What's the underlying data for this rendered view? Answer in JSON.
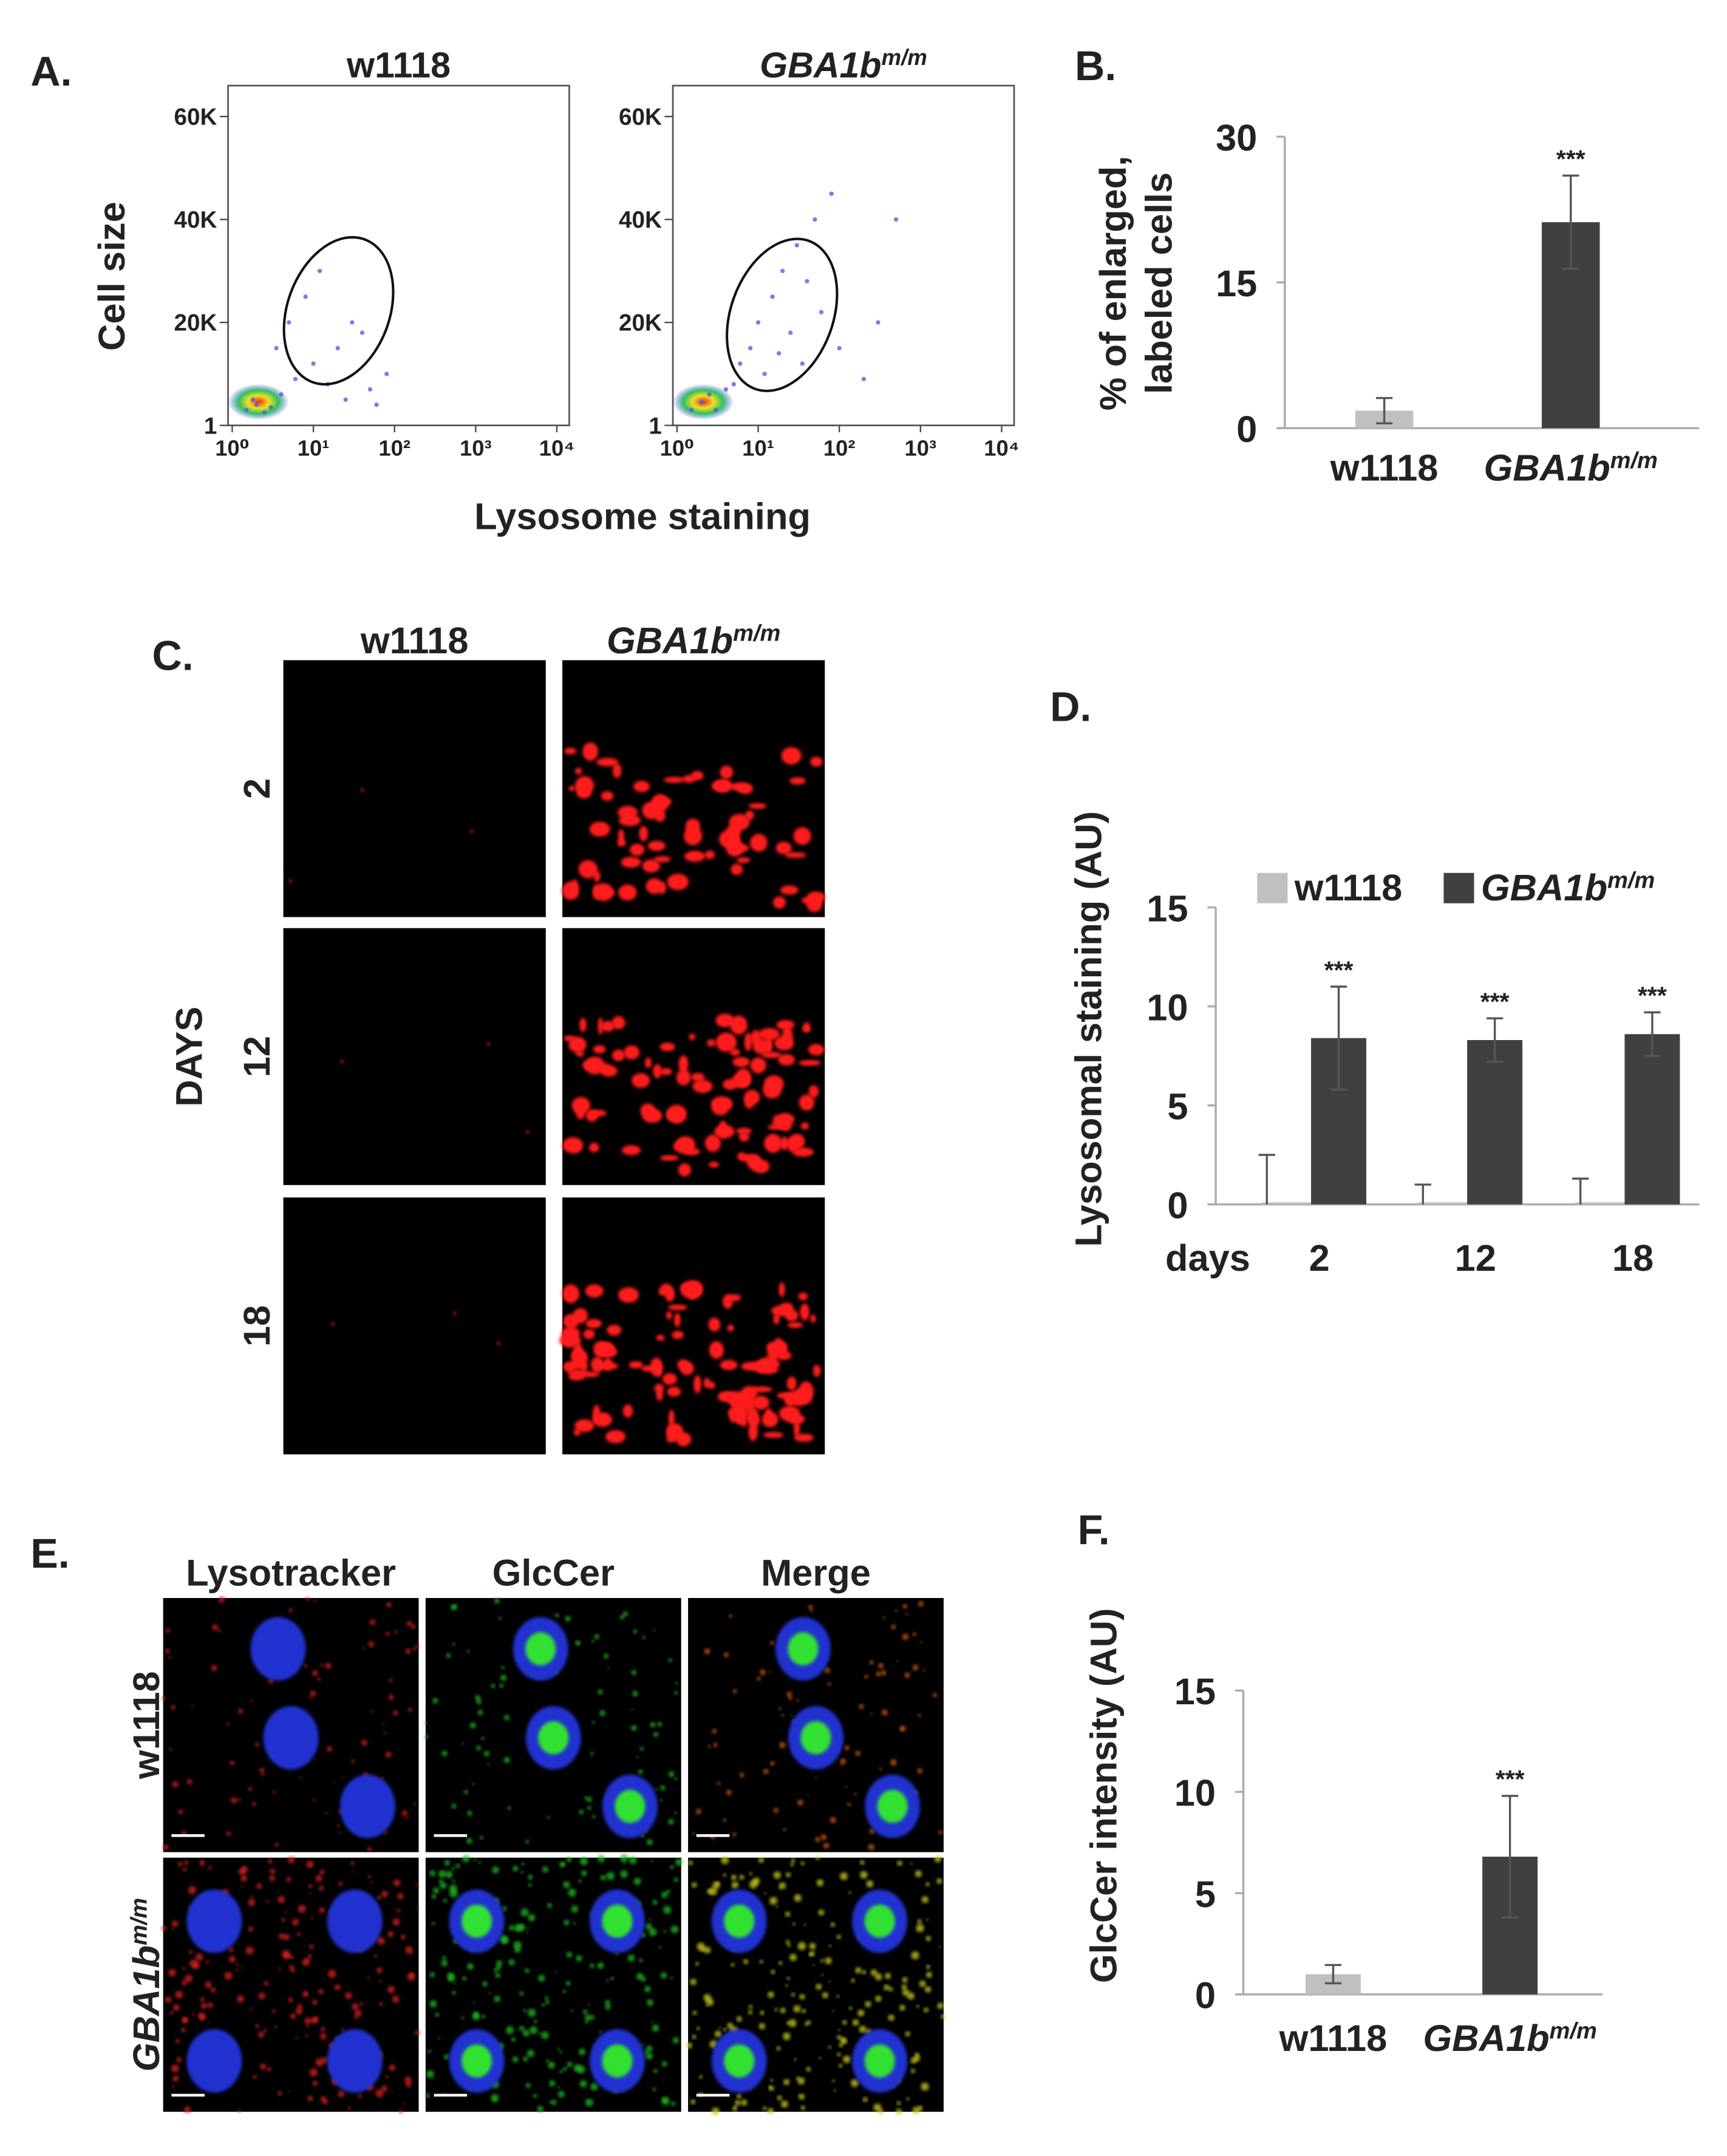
{
  "panel_labels": [
    "A.",
    "B.",
    "C.",
    "D.",
    "E.",
    "F."
  ],
  "panel_a": {
    "xlabel": "Lysosome staining"
  },
  "panel_c": {
    "columns": [
      "w1118",
      "GBA1b"
    ],
    "column_sup": [
      null,
      "m/m"
    ],
    "rows": [
      "2",
      "12",
      "18"
    ],
    "row_title": "DAYS"
  },
  "panel_e": {
    "columns": [
      "Lysotracker",
      "GlcCer",
      "Merge"
    ],
    "rows": [
      "w1118",
      "GBA1b"
    ],
    "row_sup": [
      null,
      "m/m"
    ]
  },
  "chart_data": [
    {
      "type": "scatter",
      "title": "w1118",
      "ylabel": "Cell size",
      "xscale": "log",
      "xlim": [
        1,
        10000
      ],
      "xticks": [
        {
          "value": 1,
          "label": "10⁰"
        },
        {
          "value": 10,
          "label": "10¹"
        },
        {
          "value": 100,
          "label": "10²"
        },
        {
          "value": 1000,
          "label": "10³"
        },
        {
          "value": 10000,
          "label": "10⁴"
        }
      ],
      "ylim": [
        0,
        66000
      ],
      "yticks": [
        1,
        {
          "value": 20000,
          "label": "20K"
        },
        {
          "value": 40000,
          "label": "40K"
        },
        {
          "value": 60000,
          "label": "60K"
        }
      ],
      "color": "#5a5ae6",
      "x": [
        1.5,
        2,
        2.5,
        1.8,
        3,
        4,
        6,
        10,
        15,
        20,
        30,
        50,
        80,
        8,
        12,
        25,
        40,
        3.5,
        5,
        60
      ],
      "y": [
        3000,
        4000,
        2500,
        5000,
        3500,
        6000,
        9000,
        12000,
        8000,
        15000,
        20000,
        7000,
        10000,
        25000,
        30000,
        5000,
        18000,
        15000,
        20000,
        4000
      ]
    },
    {
      "type": "scatter",
      "title": "GBA1b",
      "title_sup": "m/m",
      "xscale": "log",
      "xlim": [
        1,
        10000
      ],
      "xticks": [
        {
          "value": 1,
          "label": "10⁰"
        },
        {
          "value": 10,
          "label": "10¹"
        },
        {
          "value": 100,
          "label": "10²"
        },
        {
          "value": 1000,
          "label": "10³"
        },
        {
          "value": 10000,
          "label": "10⁴"
        }
      ],
      "ylim": [
        0,
        66000
      ],
      "yticks": [
        1,
        {
          "value": 20000,
          "label": "20K"
        },
        {
          "value": 40000,
          "label": "40K"
        },
        {
          "value": 60000,
          "label": "60K"
        }
      ],
      "color": "#5a5ae6",
      "x": [
        1.5,
        2,
        3,
        4,
        6,
        8,
        10,
        15,
        20,
        30,
        40,
        60,
        100,
        200,
        12,
        25,
        50,
        80,
        5,
        18,
        35,
        300,
        500,
        2.5
      ],
      "y": [
        3000,
        4500,
        3000,
        7000,
        12000,
        15000,
        20000,
        25000,
        30000,
        35000,
        28000,
        22000,
        15000,
        9000,
        10000,
        18000,
        40000,
        45000,
        8000,
        14000,
        12000,
        20000,
        40000,
        6000
      ]
    },
    {
      "type": "bar",
      "ylabel": [
        "% of enlarged,",
        "labeled cells"
      ],
      "categories": [
        "w1118",
        "GBA1b"
      ],
      "category_sup": [
        null,
        "m/m"
      ],
      "values": [
        1.8,
        21.2
      ],
      "errors": [
        1.3,
        4.8
      ],
      "colors": [
        "#c0c0c0",
        "#404040"
      ],
      "significance": [
        null,
        "***"
      ],
      "ylim": [
        0,
        30
      ],
      "yticks": [
        0,
        15,
        30
      ]
    },
    {
      "type": "grouped_bar",
      "ylabel": "Lysosomal staining (AU)",
      "xlabel": "days",
      "categories": [
        "2",
        "12",
        "18"
      ],
      "series": [
        {
          "name": "w1118",
          "color": "#c0c0c0",
          "values": [
            0.1,
            0.1,
            0.1
          ],
          "errors": [
            2.4,
            0.9,
            1.2
          ]
        },
        {
          "name": "GBA1b",
          "name_sup": "m/m",
          "color": "#404040",
          "values": [
            8.4,
            8.3,
            8.6
          ],
          "errors": [
            2.6,
            1.1,
            1.1
          ],
          "significance": [
            "***",
            "***",
            "***"
          ]
        }
      ],
      "ylim": [
        0,
        15
      ],
      "yticks": [
        0,
        5,
        10,
        15
      ],
      "legend": "top"
    },
    {
      "type": "bar",
      "ylabel": "GlcCer intensity (AU)",
      "categories": [
        "w1118",
        "GBA1b"
      ],
      "category_sup": [
        null,
        "m/m"
      ],
      "values": [
        1.0,
        6.8
      ],
      "errors": [
        0.45,
        3.0
      ],
      "colors": [
        "#c0c0c0",
        "#404040"
      ],
      "significance": [
        null,
        "***"
      ],
      "ylim": [
        0,
        15
      ],
      "yticks": [
        0,
        5,
        10,
        15
      ]
    }
  ]
}
